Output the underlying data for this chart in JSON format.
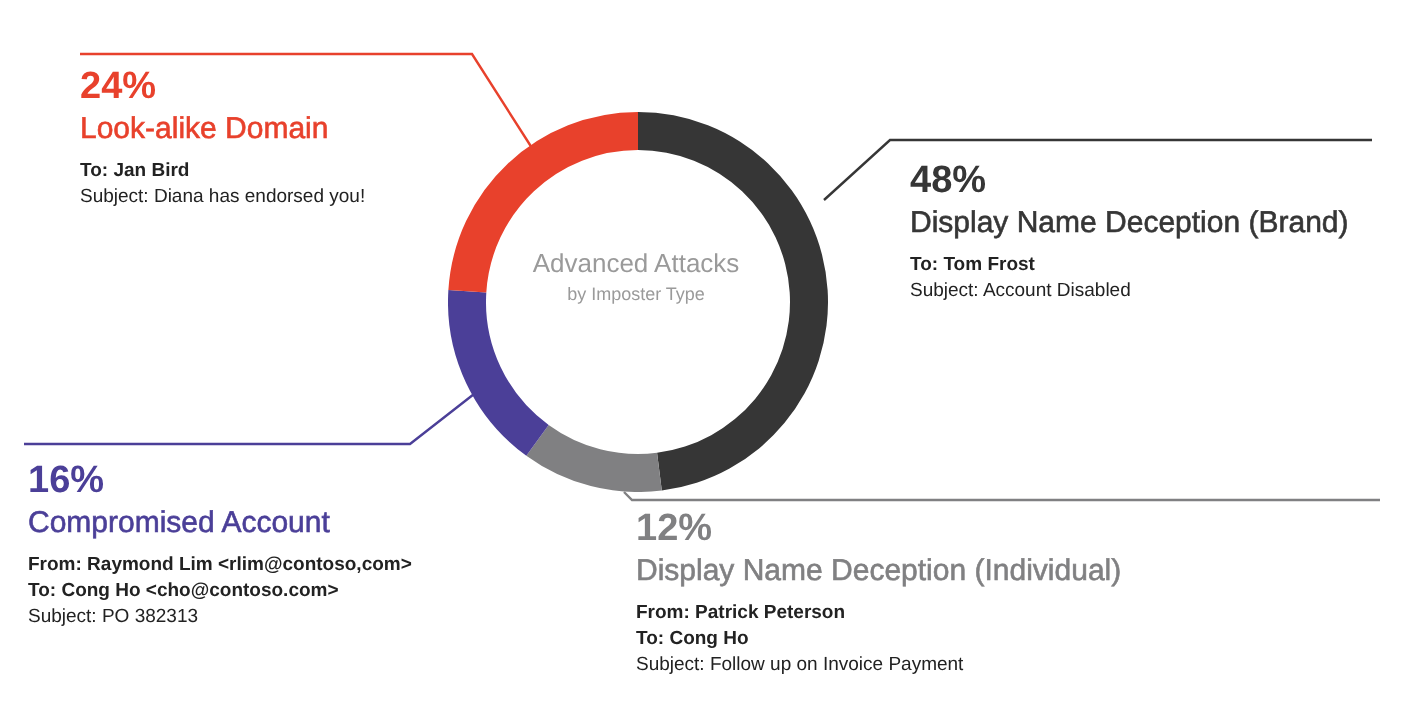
{
  "chart_data": {
    "type": "donut",
    "title": "Advanced Attacks",
    "subtitle": "by Imposter Type",
    "categories": [
      "Display Name Deception (Brand)",
      "Display Name Deception (Individual)",
      "Compromised Account",
      "Look-alike Domain"
    ],
    "values": [
      48,
      12,
      16,
      24
    ],
    "value_labels": [
      "48%",
      "12%",
      "16%",
      "24%"
    ],
    "colors": [
      "#363636",
      "#808082",
      "#4b3f98",
      "#e8412c"
    ],
    "annotations": [
      "To: Tom Frost\nSubject: Account Disabled",
      "From: Patrick Peterson\nTo: Cong Ho\nSubject: Follow up on Invoice Payment",
      "From: Raymond Lim <rlim@contoso,com>\nTo: Cong Ho <cho@contoso.com>\nSubject: PO 382313",
      "To: Jan Bird\nSubject: Diana has endorsed you!"
    ],
    "legend": false
  }
}
